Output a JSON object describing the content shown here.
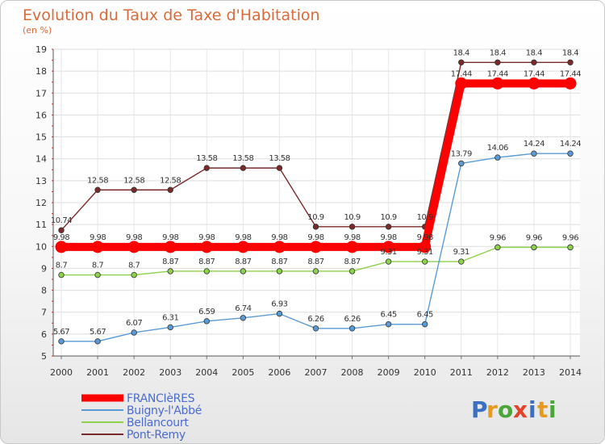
{
  "chart_data": {
    "type": "line",
    "title": "Evolution du Taux de Taxe d'Habitation",
    "subtitle": "(en %)",
    "xlabel": "",
    "ylabel": "",
    "ylim": [
      5,
      19
    ],
    "yticks": [
      "5",
      "6",
      "7",
      "8",
      "9",
      "10",
      "11",
      "12",
      "13",
      "14",
      "15",
      "16",
      "17",
      "18",
      "19"
    ],
    "grid": true,
    "legend_position": "bottom-left",
    "categories": [
      "2000",
      "2001",
      "2002",
      "2003",
      "2004",
      "2005",
      "2006",
      "2007",
      "2008",
      "2009",
      "2010",
      "2011",
      "2012",
      "2013",
      "2014"
    ],
    "series": [
      {
        "name": "FRANCIèRES",
        "color": "#ff0000",
        "values": [
          9.98,
          9.98,
          9.98,
          9.98,
          9.98,
          9.98,
          9.98,
          9.98,
          9.98,
          9.98,
          9.98,
          17.44,
          17.44,
          17.44,
          17.44
        ],
        "labels": [
          "9.98",
          "9.98",
          "9.98",
          "9.98",
          "9.98",
          "9.98",
          "9.98",
          "9.98",
          "9.98",
          "9.98",
          "9.98",
          "17.44",
          "17.44",
          "17.44",
          "17.44"
        ]
      },
      {
        "name": "Buigny-l'Abbé",
        "color": "#5b9bd5",
        "values": [
          5.67,
          5.67,
          6.07,
          6.31,
          6.59,
          6.74,
          6.93,
          6.26,
          6.26,
          6.45,
          6.45,
          13.79,
          14.06,
          14.24,
          14.24
        ],
        "labels": [
          "5.67",
          "5.67",
          "6.07",
          "6.31",
          "6.59",
          "6.74",
          "6.93",
          "6.26",
          "6.26",
          "6.45",
          "6.45",
          "13.79",
          "14.06",
          "14.24",
          "14.24"
        ]
      },
      {
        "name": "Bellancourt",
        "color": "#8ed14b",
        "values": [
          8.7,
          8.7,
          8.7,
          8.87,
          8.87,
          8.87,
          8.87,
          8.87,
          8.87,
          9.31,
          9.31,
          9.31,
          9.96,
          9.96,
          9.96
        ],
        "labels": [
          "8.7",
          "8.7",
          "8.7",
          "8.87",
          "8.87",
          "8.87",
          "8.87",
          "8.87",
          "8.87",
          "9.31",
          "9.31",
          "9.31",
          "9.96",
          "9.96",
          "9.96"
        ]
      },
      {
        "name": "Pont-Remy",
        "color": "#7a2a2a",
        "values": [
          10.74,
          12.58,
          12.58,
          12.58,
          13.58,
          13.58,
          13.58,
          10.9,
          10.9,
          10.9,
          10.9,
          18.4,
          18.4,
          18.4,
          18.4
        ],
        "labels": [
          "10.74",
          "12.58",
          "12.58",
          "12.58",
          "13.58",
          "13.58",
          "13.58",
          "10.9",
          "10.9",
          "10.9",
          "10.9",
          "18.4",
          "18.4",
          "18.4",
          "18.4"
        ]
      }
    ]
  },
  "logo": {
    "letters": [
      "P",
      "r",
      "o",
      "x",
      "i",
      "t",
      "i"
    ],
    "colors": [
      "#3b6fc4",
      "#e69a1f",
      "#4aa63a",
      "#e0442b",
      "#3b6fc4",
      "#e69a1f",
      "#4aa63a"
    ]
  }
}
